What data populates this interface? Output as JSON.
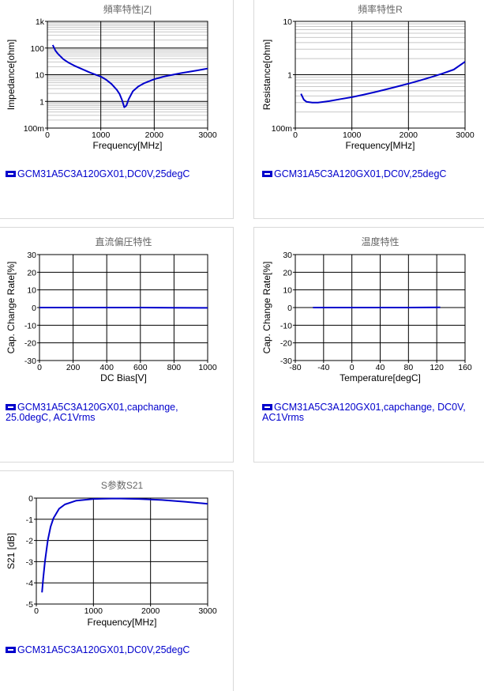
{
  "chart_data": [
    {
      "type": "line",
      "title": "頻率特性|Z|",
      "xlabel": "Frequency[MHz]",
      "ylabel": "Impedance[ohm]",
      "xlim": [
        0,
        3000
      ],
      "ylim": [
        0.1,
        1000
      ],
      "yscale": "log",
      "xticks": [
        "0",
        "1000",
        "2000",
        "3000"
      ],
      "yticks": [
        "100m",
        "1",
        "10",
        "100",
        "1k"
      ],
      "series": [
        {
          "name": "GCM31A5C3A120GX01,DC0V,25degC",
          "x": [
            100,
            150,
            200,
            300,
            400,
            500,
            600,
            800,
            1000,
            1100,
            1200,
            1300,
            1350,
            1400,
            1440,
            1480,
            1520,
            1600,
            1700,
            1800,
            2000,
            2200,
            2500,
            2800,
            3000
          ],
          "y": [
            130,
            80,
            60,
            38,
            28,
            22,
            18,
            12,
            8.5,
            6.5,
            4.5,
            2.7,
            1.9,
            1.1,
            0.6,
            0.7,
            1.2,
            2.4,
            3.6,
            4.7,
            6.8,
            8.7,
            11.5,
            14.5,
            17
          ]
        }
      ],
      "legend": "GCM31A5C3A120GX01,DC0V,25degC",
      "grid": true
    },
    {
      "type": "line",
      "title": "頻率特性R",
      "xlabel": "Frequency[MHz]",
      "ylabel": "Resistance[ohm]",
      "xlim": [
        0,
        3000
      ],
      "ylim": [
        0.1,
        10
      ],
      "yscale": "log",
      "xticks": [
        "0",
        "1000",
        "2000",
        "3000"
      ],
      "yticks": [
        "100m",
        "1",
        "10"
      ],
      "series": [
        {
          "name": "GCM31A5C3A120GX01,DC0V,25degC",
          "x": [
            100,
            150,
            200,
            300,
            400,
            600,
            800,
            1000,
            1200,
            1400,
            1600,
            1800,
            2000,
            2200,
            2400,
            2600,
            2800,
            3000
          ],
          "y": [
            0.44,
            0.34,
            0.31,
            0.3,
            0.3,
            0.32,
            0.35,
            0.38,
            0.42,
            0.47,
            0.53,
            0.6,
            0.68,
            0.78,
            0.9,
            1.05,
            1.25,
            1.75
          ]
        }
      ],
      "legend": "GCM31A5C3A120GX01,DC0V,25degC",
      "grid": true
    },
    {
      "type": "line",
      "title": "直流偏圧特性",
      "xlabel": "DC Bias[V]",
      "ylabel": "Cap. Change Rate[%]",
      "xlim": [
        0,
        1000
      ],
      "ylim": [
        -30,
        30
      ],
      "xticks": [
        "0",
        "200",
        "400",
        "600",
        "800",
        "1000"
      ],
      "yticks": [
        "-30",
        "-20",
        "-10",
        "0",
        "10",
        "20",
        "30"
      ],
      "series": [
        {
          "name": "GCM31A5C3A120GX01,capchange, 25.0degC, AC1Vrms",
          "x": [
            0,
            200,
            400,
            600,
            800,
            1000
          ],
          "y": [
            0,
            0,
            0,
            0,
            -0.1,
            -0.2
          ]
        }
      ],
      "legend": "GCM31A5C3A120GX01,capchange, 25.0degC, AC1Vrms",
      "grid": true
    },
    {
      "type": "line",
      "title": "温度特性",
      "xlabel": "Temperature[degC]",
      "ylabel": "Cap. Change Rate[%]",
      "xlim": [
        -80,
        160
      ],
      "ylim": [
        -30,
        30
      ],
      "xticks": [
        "-80",
        "-40",
        "0",
        "40",
        "80",
        "120",
        "160"
      ],
      "yticks": [
        "-30",
        "-20",
        "-10",
        "0",
        "10",
        "20",
        "30"
      ],
      "series": [
        {
          "name": "GCM31A5C3A120GX01,capchange, DC0V, AC1Vrms",
          "x": [
            -55,
            -40,
            0,
            25,
            40,
            80,
            125
          ],
          "y": [
            0,
            0,
            0,
            0,
            0,
            0,
            0.1
          ]
        }
      ],
      "legend": "GCM31A5C3A120GX01,capchange, DC0V, AC1Vrms",
      "grid": true
    },
    {
      "type": "line",
      "title": "S参数S21",
      "xlabel": "Frequency[MHz]",
      "ylabel": "S21 [dB]",
      "xlim": [
        0,
        3000
      ],
      "ylim": [
        -5,
        0
      ],
      "xticks": [
        "0",
        "1000",
        "2000",
        "3000"
      ],
      "yticks": [
        "-5",
        "-4",
        "-3",
        "-2",
        "-1",
        "0"
      ],
      "series": [
        {
          "name": "GCM31A5C3A120GX01,DC0V,25degC",
          "x": [
            100,
            120,
            150,
            200,
            250,
            300,
            400,
            500,
            700,
            1000,
            1400,
            1800,
            2200,
            2600,
            3000
          ],
          "y": [
            -4.45,
            -3.8,
            -3.0,
            -2.0,
            -1.35,
            -0.95,
            -0.5,
            -0.3,
            -0.12,
            -0.04,
            -0.02,
            -0.04,
            -0.09,
            -0.17,
            -0.27
          ]
        }
      ],
      "legend": "GCM31A5C3A120GX01,DC0V,25degC",
      "grid": true
    }
  ],
  "colors": {
    "line": "#0000cc",
    "grid": "#000000",
    "minor_grid": "#c8c8c8",
    "title": "#666666"
  }
}
